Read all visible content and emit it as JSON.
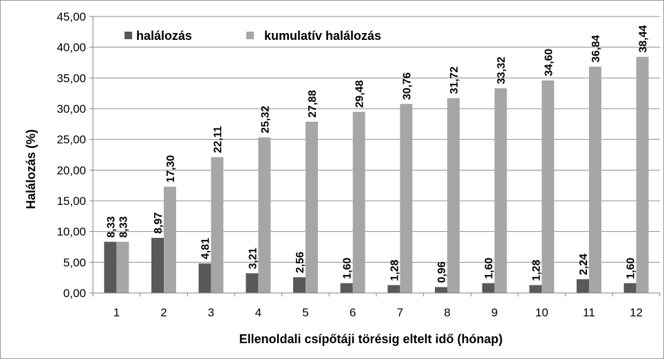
{
  "chart_data": {
    "type": "bar",
    "categories": [
      "1",
      "2",
      "3",
      "4",
      "5",
      "6",
      "7",
      "8",
      "9",
      "10",
      "11",
      "12"
    ],
    "series": [
      {
        "name": "halálozás",
        "color": "#595959",
        "values": [
          8.33,
          8.97,
          4.81,
          3.21,
          2.56,
          1.6,
          1.28,
          0.96,
          1.6,
          1.28,
          2.24,
          1.6
        ],
        "labels": [
          "8,33",
          "8,97",
          "4,81",
          "3,21",
          "2,56",
          "1,60",
          "1,28",
          "0,96",
          "1,60",
          "1,28",
          "2,24",
          "1,60"
        ]
      },
      {
        "name": "kumulatív halálozás",
        "color": "#a6a6a6",
        "values": [
          8.33,
          17.3,
          22.11,
          25.32,
          27.88,
          29.48,
          30.76,
          31.72,
          33.32,
          34.6,
          36.84,
          38.44
        ],
        "labels": [
          "8,33",
          "17,30",
          "22,11",
          "25,32",
          "27,88",
          "29,48",
          "30,76",
          "31,72",
          "33,32",
          "34,60",
          "36,84",
          "38,44"
        ]
      }
    ],
    "xlabel": "Ellenoldali csípőtáji törésig eltelt idő (hónap)",
    "ylabel": "Halálozás (%)",
    "ylim": [
      0,
      45
    ],
    "yticks": [
      0,
      5,
      10,
      15,
      20,
      25,
      30,
      35,
      40,
      45
    ],
    "ytick_labels": [
      "0,00",
      "5,00",
      "10,00",
      "15,00",
      "20,00",
      "25,00",
      "30,00",
      "35,00",
      "40,00",
      "45,00"
    ],
    "grid": true,
    "legend_position": "top-left"
  }
}
